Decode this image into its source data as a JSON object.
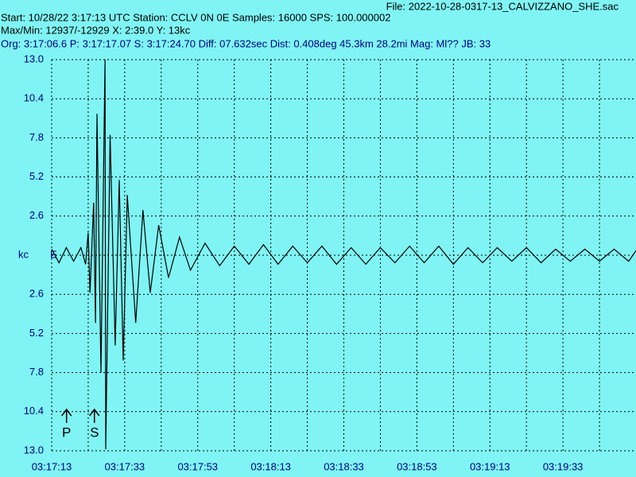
{
  "header": {
    "file": "File: 2022-10-28-0317-13_CALVIZZANO_SHE.sac",
    "start": "Start: 10/28/22  3:17:13 UTC Station: CCLV 0N 0E Samples: 16000  SPS: 100.000002",
    "maxmin": "Max/Min: 12937/-12929 X: 2:39.0 Y: 13kc",
    "org": "Org: 3:17:06.6 P: 3:17:17.07 S: 3:17:24.70 Diff: 07.632sec Dist: 0.408deg 45.3km 28.2mi  Mag: Ml?? JB: 33"
  },
  "chart_data": {
    "type": "line",
    "channel": "E",
    "xlim": [
      0,
      160
    ],
    "ylim": [
      -13,
      13
    ],
    "xticks": [
      {
        "value": 0,
        "label": "03:17:13"
      },
      {
        "value": 20,
        "label": "03:17:33"
      },
      {
        "value": 40,
        "label": "03:17:53"
      },
      {
        "value": 60,
        "label": "03:18:13"
      },
      {
        "value": 80,
        "label": "03:18:33"
      },
      {
        "value": 100,
        "label": "03:18:53"
      },
      {
        "value": 120,
        "label": "03:19:13"
      },
      {
        "value": 140,
        "label": "03:19:33"
      }
    ],
    "xgrid": [
      0,
      10,
      20,
      30,
      40,
      50,
      60,
      70,
      80,
      90,
      100,
      110,
      120,
      130,
      140,
      150
    ],
    "yticks": [
      {
        "value": 13,
        "label": "13.0"
      },
      {
        "value": 10.4,
        "label": "10.4"
      },
      {
        "value": 7.8,
        "label": "7.8"
      },
      {
        "value": 5.2,
        "label": "5.2"
      },
      {
        "value": 2.6,
        "label": "2.6"
      },
      {
        "value": 0,
        "label": "kc"
      },
      {
        "value": -2.6,
        "label": "2.6"
      },
      {
        "value": -5.2,
        "label": "5.2"
      },
      {
        "value": -7.8,
        "label": "7.8"
      },
      {
        "value": -10.4,
        "label": "10.4"
      },
      {
        "value": -13,
        "label": "13.0"
      }
    ],
    "grid": true,
    "picks": [
      {
        "label": "P",
        "x": 4.07
      },
      {
        "label": "S",
        "x": 11.7
      }
    ],
    "series": [
      {
        "color": "#000000",
        "x": [
          0,
          2,
          4,
          6,
          8,
          9.3,
          10,
          10.5,
          11.5,
          12,
          12.4,
          13.5,
          14.6,
          14.8,
          16,
          17.4,
          18.5,
          19.6,
          20.7,
          23,
          25,
          27,
          29.3,
          32,
          35,
          38,
          42,
          46,
          50,
          54,
          58,
          62,
          66,
          70,
          74,
          78,
          82,
          86,
          90,
          94,
          98,
          102,
          106,
          110,
          114,
          118,
          122,
          126,
          130,
          134,
          138,
          142,
          146,
          150,
          154,
          158,
          160
        ],
        "values": [
          0.4,
          -0.5,
          0.5,
          -0.4,
          0.5,
          -0.6,
          1.5,
          -2.5,
          3.5,
          -4.5,
          9.4,
          -7.8,
          13.0,
          -12.9,
          8.0,
          -6.0,
          5.0,
          -7.0,
          4.0,
          -4.5,
          3.0,
          -2.5,
          2.0,
          -1.5,
          1.2,
          -1.0,
          0.8,
          -0.7,
          0.6,
          -0.6,
          0.7,
          -0.6,
          0.6,
          -0.5,
          0.6,
          -0.6,
          0.5,
          -0.6,
          0.5,
          -0.5,
          0.6,
          -0.5,
          0.6,
          -0.6,
          0.5,
          -0.5,
          0.5,
          -0.4,
          0.5,
          -0.5,
          0.4,
          -0.4,
          0.4,
          -0.4,
          0.4,
          -0.4,
          0.3
        ]
      }
    ]
  }
}
